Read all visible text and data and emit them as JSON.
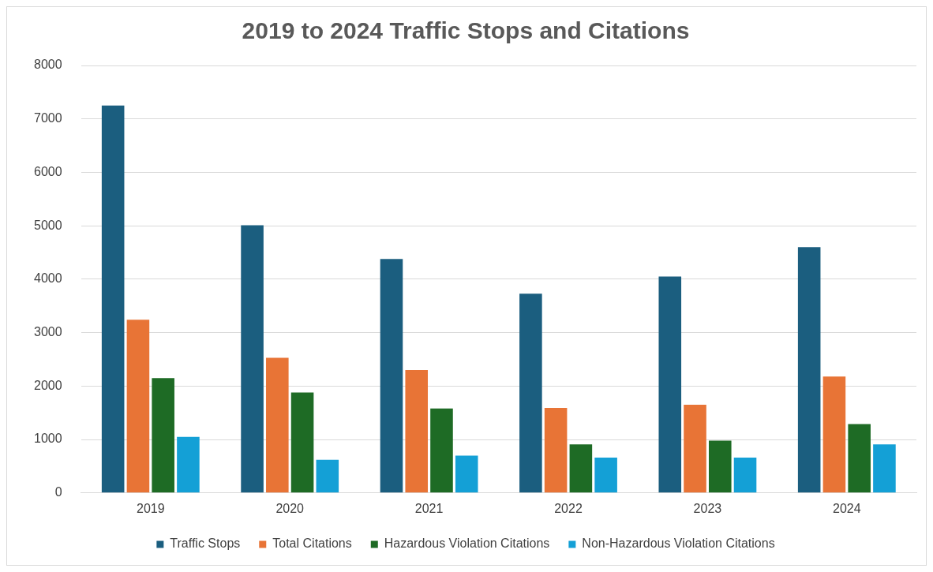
{
  "chart_data": {
    "type": "bar",
    "title": "2019 to 2024 Traffic Stops and Citations",
    "categories": [
      "2019",
      "2020",
      "2021",
      "2022",
      "2023",
      "2024"
    ],
    "series": [
      {
        "name": "Traffic Stops",
        "color": "#1b5e7f",
        "values": [
          7250,
          5010,
          4380,
          3730,
          4050,
          4600
        ]
      },
      {
        "name": "Total Citations",
        "color": "#e87436",
        "values": [
          3240,
          2530,
          2300,
          1590,
          1650,
          2180
        ]
      },
      {
        "name": "Hazardous Violation Citations",
        "color": "#1e6b25",
        "values": [
          2150,
          1880,
          1580,
          910,
          980,
          1290
        ]
      },
      {
        "name": "Non-Hazardous Violation Citations",
        "color": "#14a0d6",
        "values": [
          1050,
          620,
          700,
          660,
          660,
          910
        ]
      }
    ],
    "ylim": [
      0,
      8000
    ],
    "yticks": [
      0,
      1000,
      2000,
      3000,
      4000,
      5000,
      6000,
      7000,
      8000
    ],
    "grid": "y",
    "legend": "bottom"
  }
}
